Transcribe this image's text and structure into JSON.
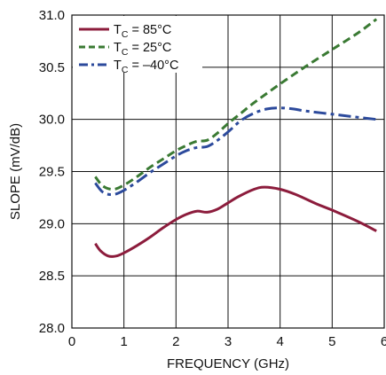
{
  "chart_data": {
    "type": "line",
    "xlabel": "FREQUENCY (GHz)",
    "ylabel": "SLOPE (mV/dB)",
    "xlim": [
      0,
      6
    ],
    "ylim": [
      28.0,
      31.0
    ],
    "x_ticks": [
      0,
      1,
      2,
      3,
      4,
      5,
      6
    ],
    "x_tick_labels": [
      "0",
      "1",
      "2",
      "3",
      "4",
      "5",
      "6"
    ],
    "y_ticks": [
      28.0,
      28.5,
      29.0,
      29.5,
      30.0,
      30.5,
      31.0
    ],
    "y_tick_labels": [
      "28.0",
      "28.5",
      "29.0",
      "29.5",
      "30.0",
      "30.5",
      "31.0"
    ],
    "grid": true,
    "legend_position": "top-left",
    "series": [
      {
        "name": "T_C = 85°C",
        "legend_main": "T",
        "legend_sub": "C",
        "legend_rest": " = 85°C",
        "color": "#8c1c3c",
        "dash": "solid",
        "x": [
          0.45,
          0.55,
          0.7,
          0.85,
          1.0,
          1.25,
          1.5,
          1.75,
          2.0,
          2.2,
          2.4,
          2.6,
          2.8,
          3.0,
          3.2,
          3.5,
          3.7,
          4.0,
          4.3,
          4.7,
          5.0,
          5.5,
          5.85
        ],
        "y": [
          28.81,
          28.74,
          28.69,
          28.69,
          28.72,
          28.79,
          28.87,
          28.96,
          29.04,
          29.09,
          29.12,
          29.11,
          29.14,
          29.2,
          29.26,
          29.33,
          29.35,
          29.33,
          29.28,
          29.19,
          29.13,
          29.02,
          28.93
        ]
      },
      {
        "name": "T_C = 25°C",
        "legend_main": "T",
        "legend_sub": "C",
        "legend_rest": " = 25°C",
        "color": "#3a7a33",
        "dash": "dash",
        "x": [
          0.45,
          0.6,
          0.8,
          1.0,
          1.25,
          1.5,
          1.75,
          2.0,
          2.2,
          2.4,
          2.6,
          2.8,
          3.0,
          3.25,
          3.5,
          4.0,
          4.5,
          5.0,
          5.5,
          5.85
        ],
        "y": [
          29.45,
          29.36,
          29.33,
          29.37,
          29.45,
          29.54,
          29.62,
          29.7,
          29.75,
          29.79,
          29.8,
          29.87,
          29.96,
          30.06,
          30.16,
          30.34,
          30.51,
          30.67,
          30.83,
          30.96
        ]
      },
      {
        "name": "T_C = –40°C",
        "legend_main": "T",
        "legend_sub": "C",
        "legend_rest": " = –40°C",
        "color": "#2c4a9c",
        "dash": "dashdot",
        "x": [
          0.45,
          0.6,
          0.8,
          1.0,
          1.25,
          1.5,
          1.75,
          2.0,
          2.2,
          2.4,
          2.6,
          2.8,
          3.0,
          3.25,
          3.5,
          3.75,
          4.0,
          4.25,
          4.5,
          5.0,
          5.5,
          5.85
        ],
        "y": [
          29.39,
          29.3,
          29.28,
          29.32,
          29.4,
          29.49,
          29.57,
          29.65,
          29.7,
          29.73,
          29.74,
          29.8,
          29.88,
          29.99,
          30.06,
          30.1,
          30.11,
          30.1,
          30.08,
          30.05,
          30.02,
          30.0
        ]
      }
    ]
  }
}
